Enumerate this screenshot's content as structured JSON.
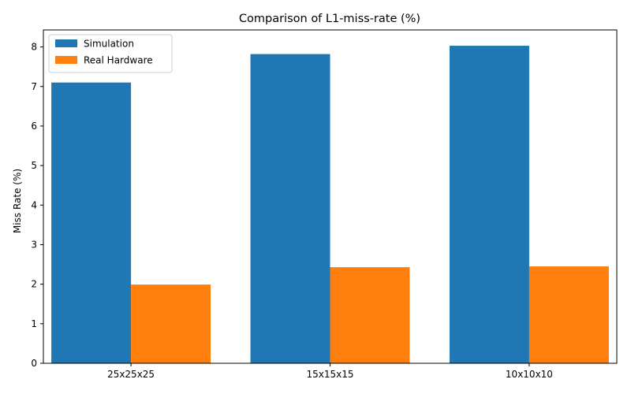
{
  "chart_data": {
    "type": "bar",
    "title": "Comparison of L1-miss-rate (%)",
    "xlabel": "",
    "ylabel": "Miss Rate (%)",
    "categories": [
      "25x25x25",
      "15x15x15",
      "10x10x10"
    ],
    "series": [
      {
        "name": "Simulation",
        "color": "#1f77b4",
        "values": [
          7.1,
          7.82,
          8.03
        ]
      },
      {
        "name": "Real Hardware",
        "color": "#ff7f0e",
        "values": [
          1.99,
          2.43,
          2.45
        ]
      }
    ],
    "ylim": [
      0,
      8.43
    ],
    "yticks": [
      0,
      1,
      2,
      3,
      4,
      5,
      6,
      7,
      8
    ],
    "legend_position": "top-left",
    "grid": false
  }
}
